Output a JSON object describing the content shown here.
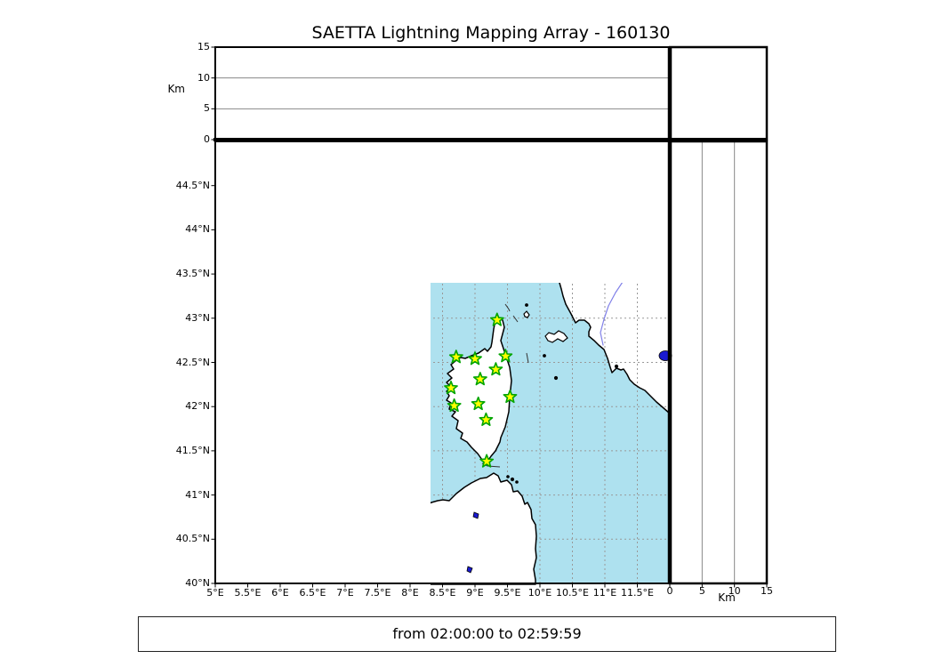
{
  "title": "SAETTA Lightning Mapping Array - 160130",
  "time_range": "from 02:00:00 to 02:59:59",
  "chart_data": {
    "type": "scatter",
    "subtype": "geographic-map-with-altitude-panels",
    "title": "SAETTA Lightning Mapping Array - 160130",
    "map_extent": {
      "lon_min": 5,
      "lon_max": 12,
      "lat_min": 40,
      "lat_max": 45
    },
    "grid_interval_deg": 0.5,
    "altitude_km": {
      "min": 0,
      "max": 15,
      "gridlines": [
        5,
        10
      ],
      "unit_label": "Km"
    },
    "lon_ticks": [
      {
        "value": 5,
        "label": "5°E"
      },
      {
        "value": 5.5,
        "label": "5.5°E"
      },
      {
        "value": 6,
        "label": "6°E"
      },
      {
        "value": 6.5,
        "label": "6.5°E"
      },
      {
        "value": 7,
        "label": "7°E"
      },
      {
        "value": 7.5,
        "label": "7.5°E"
      },
      {
        "value": 8,
        "label": "8°E"
      },
      {
        "value": 8.5,
        "label": "8.5°E"
      },
      {
        "value": 9,
        "label": "9°E"
      },
      {
        "value": 9.5,
        "label": "9.5°E"
      },
      {
        "value": 10,
        "label": "10°E"
      },
      {
        "value": 10.5,
        "label": "10.5°E"
      },
      {
        "value": 11,
        "label": "11°E"
      },
      {
        "value": 11.5,
        "label": "11.5°E"
      }
    ],
    "lat_ticks": [
      {
        "value": 44.5,
        "label": "44.5°N"
      },
      {
        "value": 44,
        "label": "44°N"
      },
      {
        "value": 43.5,
        "label": "43.5°N"
      },
      {
        "value": 43,
        "label": "43°N"
      },
      {
        "value": 42.5,
        "label": "42.5°N"
      },
      {
        "value": 42,
        "label": "42°N"
      },
      {
        "value": 41.5,
        "label": "41.5°N"
      },
      {
        "value": 41,
        "label": "41°N"
      },
      {
        "value": 40.5,
        "label": "40.5°N"
      },
      {
        "value": 40,
        "label": "40°N"
      }
    ],
    "alt_ticks": [
      {
        "value": 0,
        "label": "0"
      },
      {
        "value": 5,
        "label": "5"
      },
      {
        "value": 10,
        "label": "10"
      },
      {
        "value": 15,
        "label": "15"
      }
    ],
    "stations": [
      {
        "lon": 9.34,
        "lat": 42.98
      },
      {
        "lon": 8.71,
        "lat": 42.56
      },
      {
        "lon": 9.0,
        "lat": 42.54
      },
      {
        "lon": 9.47,
        "lat": 42.57
      },
      {
        "lon": 9.32,
        "lat": 42.42
      },
      {
        "lon": 9.08,
        "lat": 42.31
      },
      {
        "lon": 8.63,
        "lat": 42.21
      },
      {
        "lon": 9.54,
        "lat": 42.11
      },
      {
        "lon": 8.68,
        "lat": 42.01
      },
      {
        "lon": 9.05,
        "lat": 42.03
      },
      {
        "lon": 9.17,
        "lat": 41.85
      },
      {
        "lon": 9.18,
        "lat": 41.38
      }
    ],
    "lightning_points": [],
    "colors": {
      "sea": "#AEE1EF",
      "land": "#FFFFFF",
      "coast": "#000000",
      "river": "#8080E8",
      "admin_border": "#828282",
      "grid": "#999999",
      "panel_grid": "#888888",
      "station_fill": "#FFFF00",
      "station_stroke": "#00A400",
      "lake_bright": "#1A1AD0",
      "lake_dark": "#16165E"
    }
  }
}
